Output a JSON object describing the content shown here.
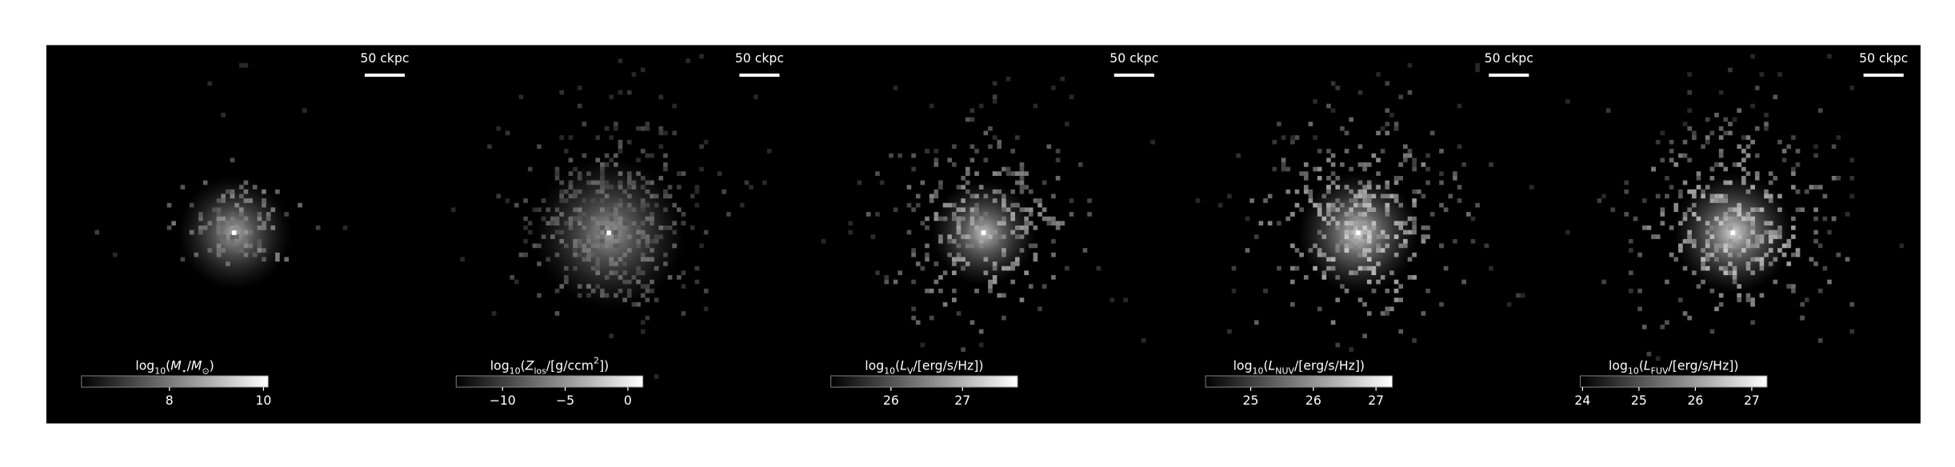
{
  "panels": [
    {
      "scale_label": "50 ckpc",
      "colorbar": {
        "lim": [
          6.13,
          10.1
        ],
        "ticks": [
          8,
          10
        ],
        "label": [
          {
            "text": "log"
          },
          {
            "text": "10",
            "shift": "sub"
          },
          {
            "text": "("
          },
          {
            "text": "M",
            "italic": true
          },
          {
            "text": "⋆",
            "shift": "sub"
          },
          {
            "text": "/"
          },
          {
            "text": "M",
            "italic": true
          },
          {
            "text": "⊙",
            "shift": "sub"
          },
          {
            "text": ")"
          }
        ]
      }
    },
    {
      "scale_label": "50 ckpc",
      "colorbar": {
        "lim": [
          -13.7,
          1.2
        ],
        "ticks": [
          {
            "value": -10,
            "label": "−10"
          },
          {
            "value": -5,
            "label": "−5"
          },
          0
        ],
        "label": [
          {
            "text": "log"
          },
          {
            "text": "10",
            "shift": "sub"
          },
          {
            "text": "("
          },
          {
            "text": "Z",
            "italic": true
          },
          {
            "text": "los",
            "shift": "sub"
          },
          {
            "text": "/[g/ccm"
          },
          {
            "text": "2",
            "shift": "super"
          },
          {
            "text": "])"
          }
        ]
      }
    },
    {
      "scale_label": "50 ckpc",
      "colorbar": {
        "lim": [
          25.16,
          27.77
        ],
        "ticks": [
          26,
          27
        ],
        "label": [
          {
            "text": "log"
          },
          {
            "text": "10",
            "shift": "sub"
          },
          {
            "text": "("
          },
          {
            "text": "L",
            "italic": true
          },
          {
            "text": "V",
            "shift": "sub"
          },
          {
            "text": "/[erg/s/Hz])"
          }
        ]
      }
    },
    {
      "scale_label": "50 ckpc",
      "colorbar": {
        "lim": [
          24.28,
          27.26
        ],
        "ticks": [
          25,
          26,
          27
        ],
        "label": [
          {
            "text": "log"
          },
          {
            "text": "10",
            "shift": "sub"
          },
          {
            "text": "("
          },
          {
            "text": "L",
            "italic": true
          },
          {
            "text": "NUV",
            "shift": "sub"
          },
          {
            "text": "/[erg/s/Hz])"
          }
        ]
      }
    },
    {
      "scale_label": "50 ckpc",
      "colorbar": {
        "lim": [
          23.96,
          27.27
        ],
        "ticks": [
          24,
          25,
          26,
          27
        ],
        "label": [
          {
            "text": "log"
          },
          {
            "text": "10",
            "shift": "sub"
          },
          {
            "text": "("
          },
          {
            "text": "L",
            "italic": true
          },
          {
            "text": "FUV",
            "shift": "sub"
          },
          {
            "text": "/[erg/s/Hz])"
          }
        ]
      }
    }
  ]
}
